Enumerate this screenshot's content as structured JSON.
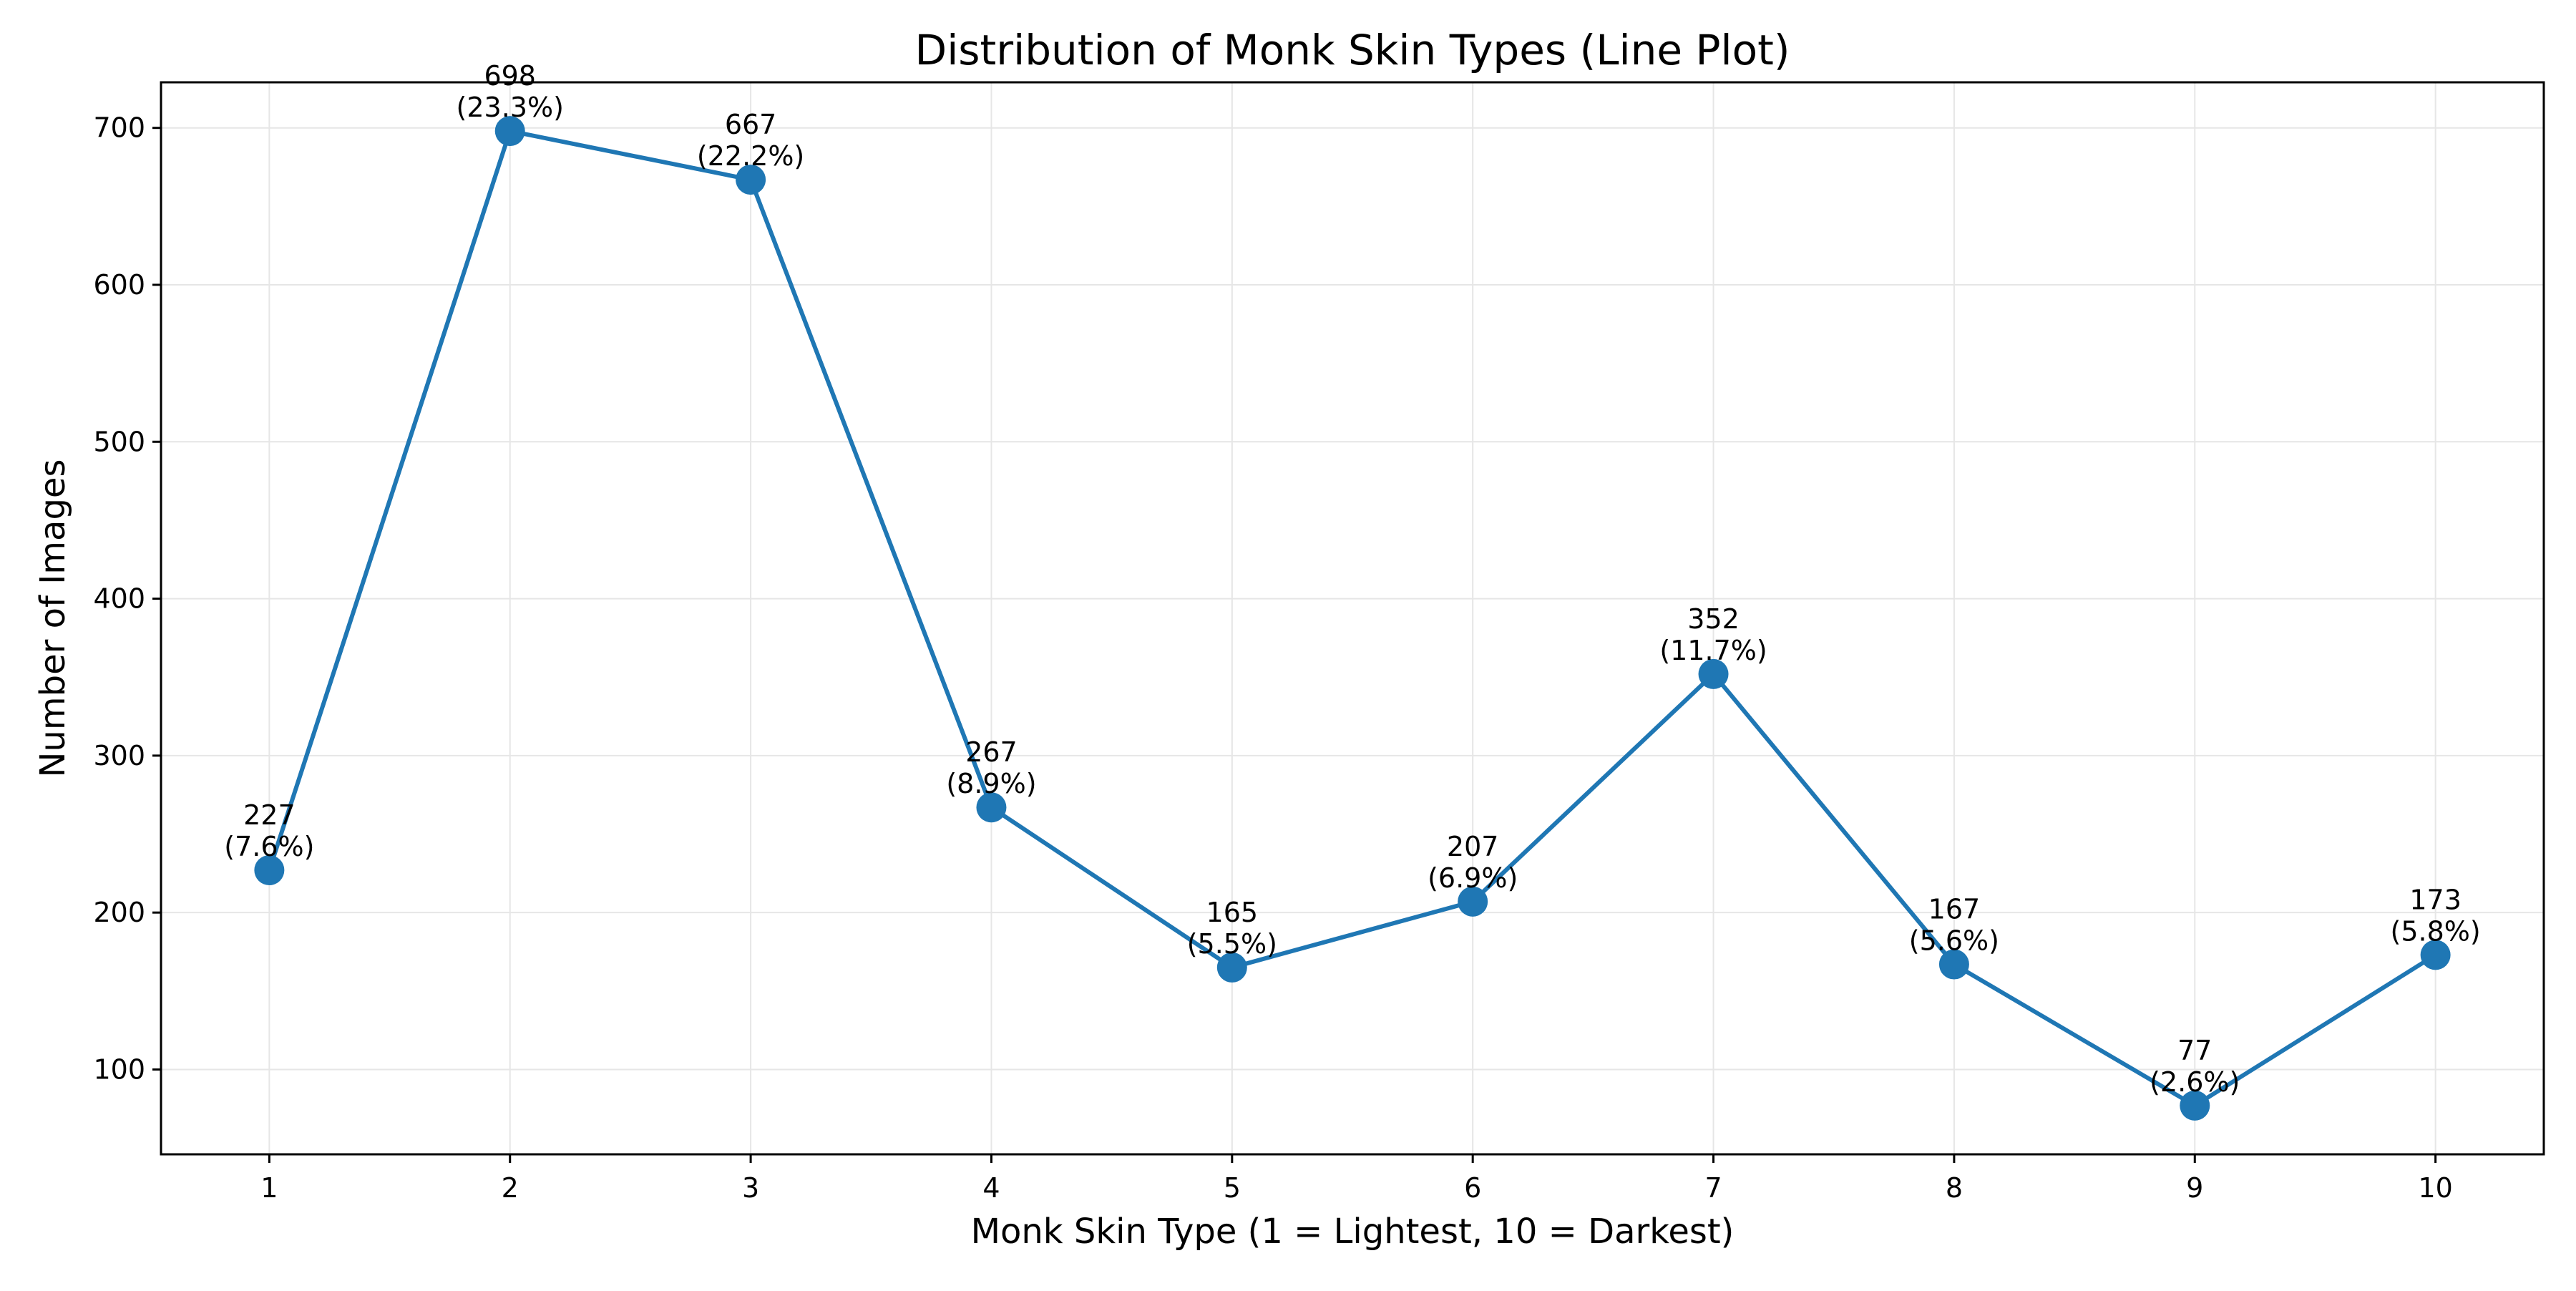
{
  "chart_data": {
    "type": "line",
    "title": "Distribution of Monk Skin Types (Line Plot)",
    "xlabel": "Monk Skin Type (1 = Lightest, 10 = Darkest)",
    "ylabel": "Number of Images",
    "x": [
      1,
      2,
      3,
      4,
      5,
      6,
      7,
      8,
      9,
      10
    ],
    "series": [
      {
        "values": [
          227,
          698,
          667,
          267,
          165,
          207,
          352,
          167,
          77,
          173
        ],
        "color": "#1f77b4",
        "marker": "circle"
      }
    ],
    "data_labels": [
      {
        "count": "227",
        "pct": "(7.6%)"
      },
      {
        "count": "698",
        "pct": "(23.3%)"
      },
      {
        "count": "667",
        "pct": "(22.2%)"
      },
      {
        "count": "267",
        "pct": "(8.9%)"
      },
      {
        "count": "165",
        "pct": "(5.5%)"
      },
      {
        "count": "207",
        "pct": "(6.9%)"
      },
      {
        "count": "352",
        "pct": "(11.7%)"
      },
      {
        "count": "167",
        "pct": "(5.6%)"
      },
      {
        "count": "77",
        "pct": "(2.6%)"
      },
      {
        "count": "173",
        "pct": "(5.8%)"
      }
    ],
    "x_ticks": [
      "1",
      "2",
      "3",
      "4",
      "5",
      "6",
      "7",
      "8",
      "9",
      "10"
    ],
    "y_ticks": [
      "100",
      "200",
      "300",
      "400",
      "500",
      "600",
      "700"
    ],
    "y_tick_values": [
      100,
      200,
      300,
      400,
      500,
      600,
      700
    ],
    "xlim": [
      0.55,
      10.45
    ],
    "ylim": [
      45.95,
      729.05
    ],
    "grid": true,
    "grid_color": "#e6e6e6",
    "legend": "none"
  }
}
